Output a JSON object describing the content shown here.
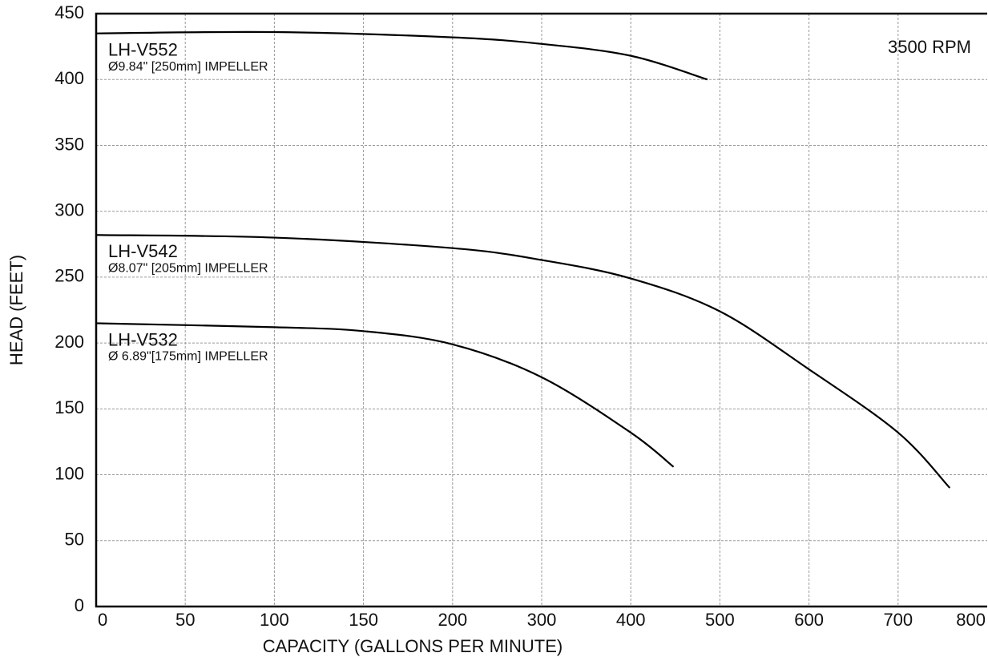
{
  "chart_data": {
    "type": "line",
    "x_label": "CAPACITY (GALLONS PER MINUTE)",
    "y_label": "HEAD (FEET)",
    "annotation": "3500 RPM",
    "xlim": [
      0,
      800
    ],
    "xticks": [
      0,
      50,
      100,
      150,
      200,
      300,
      400,
      500,
      600,
      700,
      800
    ],
    "ylim": [
      0,
      450
    ],
    "yticks": [
      0,
      50,
      100,
      150,
      200,
      250,
      300,
      350,
      400,
      450
    ],
    "grid": true,
    "series": [
      {
        "name": "LH-V552",
        "impeller": "Ø9.84\" [250mm] IMPELLER",
        "color": "#000000",
        "x": [
          0,
          100,
          200,
          300,
          400,
          486
        ],
        "values": [
          435,
          436,
          432,
          427,
          418,
          400
        ]
      },
      {
        "name": "LH-V542",
        "impeller": "Ø8.07\" [205mm] IMPELLER",
        "color": "#000000",
        "x": [
          0,
          100,
          200,
          300,
          400,
          500,
          600,
          700,
          758
        ],
        "values": [
          282,
          280,
          272,
          263,
          249,
          224,
          180,
          132,
          90
        ]
      },
      {
        "name": "LH-V532",
        "impeller": "Ø 6.89\"[175mm] IMPELLER",
        "color": "#000000",
        "x": [
          0,
          100,
          150,
          200,
          300,
          400,
          448
        ],
        "values": [
          215,
          212,
          209,
          199,
          174,
          132,
          106
        ]
      }
    ]
  }
}
